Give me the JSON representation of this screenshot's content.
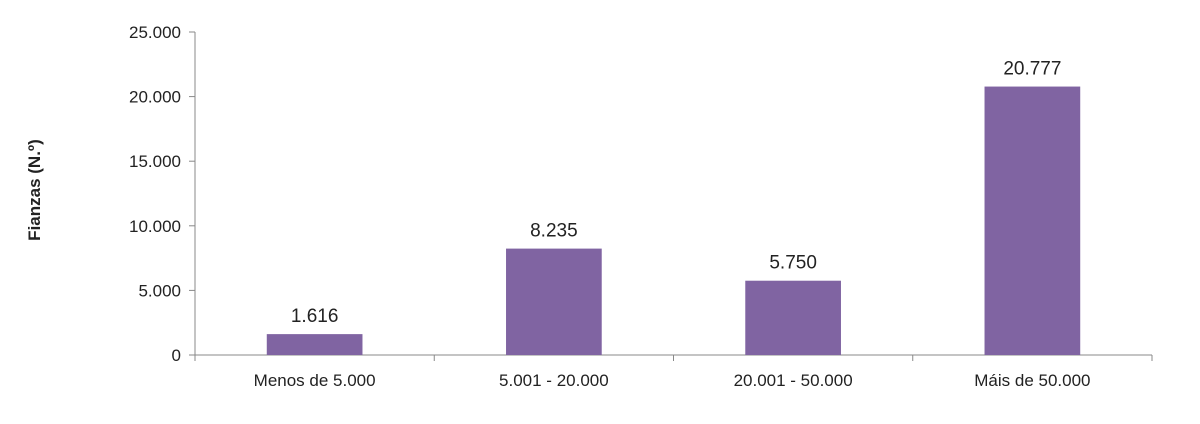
{
  "chart_data": {
    "type": "bar",
    "categories": [
      "Menos de 5.000",
      "5.001 - 20.000",
      "20.001 - 50.000",
      "Máis de 50.000"
    ],
    "values": [
      1616,
      8235,
      5750,
      20777
    ],
    "value_labels": [
      "1.616",
      "8.235",
      "5.750",
      "20.777"
    ],
    "ylabel": "Fianzas (N.º)",
    "ylim": [
      0,
      25000
    ],
    "yticks": [
      0,
      5000,
      10000,
      15000,
      20000,
      25000
    ],
    "ytick_labels": [
      "0",
      "5.000",
      "10.000",
      "15.000",
      "20.000",
      "25.000"
    ],
    "grid": false,
    "bar_color": "#8064a2",
    "axis_color": "#888888"
  }
}
